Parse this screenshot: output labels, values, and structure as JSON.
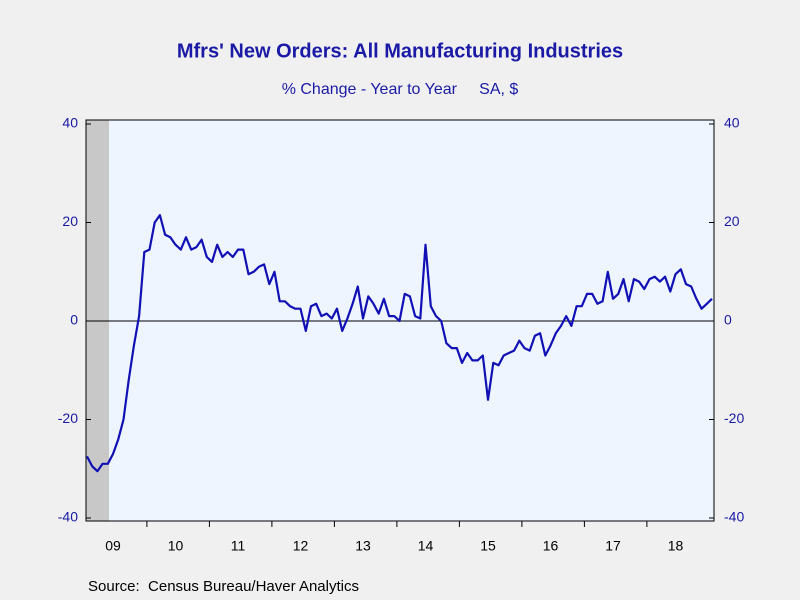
{
  "chart_data": {
    "type": "line",
    "title": "Mfrs' New Orders: All Manufacturing Industries",
    "subtitle": "% Change - Year to Year     SA, $",
    "source": "Source:  Census Bureau/Haver Analytics",
    "categories": [
      null,
      null,
      null,
      null,
      null,
      "09",
      null,
      null,
      null,
      null,
      null,
      null,
      null,
      null,
      null,
      null,
      null,
      "10",
      null,
      null,
      null,
      null,
      null,
      null,
      null,
      null,
      null,
      null,
      null,
      "11",
      null,
      null,
      null,
      null,
      null,
      null,
      null,
      null,
      null,
      null,
      null,
      "12",
      null,
      null,
      null,
      null,
      null,
      null,
      null,
      null,
      null,
      null,
      null,
      "13",
      null,
      null,
      null,
      null,
      null,
      null,
      null,
      null,
      null,
      null,
      null,
      "14",
      null,
      null,
      null,
      null,
      null,
      null,
      null,
      null,
      null,
      null,
      null,
      "15",
      null,
      null,
      null,
      null,
      null,
      null,
      null,
      null,
      null,
      null,
      null,
      "16",
      null,
      null,
      null,
      null,
      null,
      null,
      null,
      null,
      null,
      null,
      null,
      "17",
      null,
      null,
      null,
      null,
      null,
      null,
      null,
      null,
      null,
      null,
      null,
      "18",
      null,
      null,
      null,
      null,
      null,
      null,
      null
    ],
    "series": [
      {
        "color": "#1010b4",
        "values": [
          -27.5,
          -29.5,
          -30.5,
          -29,
          -29,
          -27,
          -24,
          -20,
          -12,
          -5,
          1,
          14,
          14.5,
          20,
          21.5,
          17.5,
          17,
          15.5,
          14.5,
          17,
          14.5,
          15,
          16.5,
          13,
          12,
          15.5,
          13,
          14,
          13,
          14.5,
          14.5,
          9.5,
          10,
          11,
          11.5,
          7.5,
          10,
          4,
          4,
          3,
          2.5,
          2.5,
          -2,
          3,
          3.5,
          1,
          1.5,
          0.5,
          2.5,
          -2,
          0.5,
          3.5,
          7,
          0.5,
          5,
          3.5,
          1.5,
          4.5,
          1,
          1,
          0,
          5.5,
          5,
          1,
          0.5,
          15.5,
          3,
          1,
          0,
          -4.5,
          -5.5,
          -5.5,
          -8.5,
          -6.5,
          -8,
          -8,
          -7,
          -16,
          -8.5,
          -9,
          -7,
          -6.5,
          -6,
          -4,
          -5.5,
          -6,
          -3,
          -2.5,
          -7,
          -5,
          -2.5,
          -1,
          1,
          -1,
          3,
          3,
          5.5,
          5.5,
          3.5,
          4,
          10,
          4.5,
          5.5,
          8.5,
          4,
          8.5,
          8,
          6.5,
          8.5,
          9,
          8,
          9,
          6,
          9.5,
          10.5,
          7.5,
          7,
          4.5,
          2.5,
          3.5,
          4.5
        ]
      }
    ],
    "ylim": [
      -40,
      40
    ],
    "yticks": [
      -40,
      -20,
      0,
      20,
      40
    ],
    "y2lim": [
      -40,
      40
    ],
    "y2ticks": [
      -40,
      -20,
      0,
      20,
      40
    ]
  }
}
